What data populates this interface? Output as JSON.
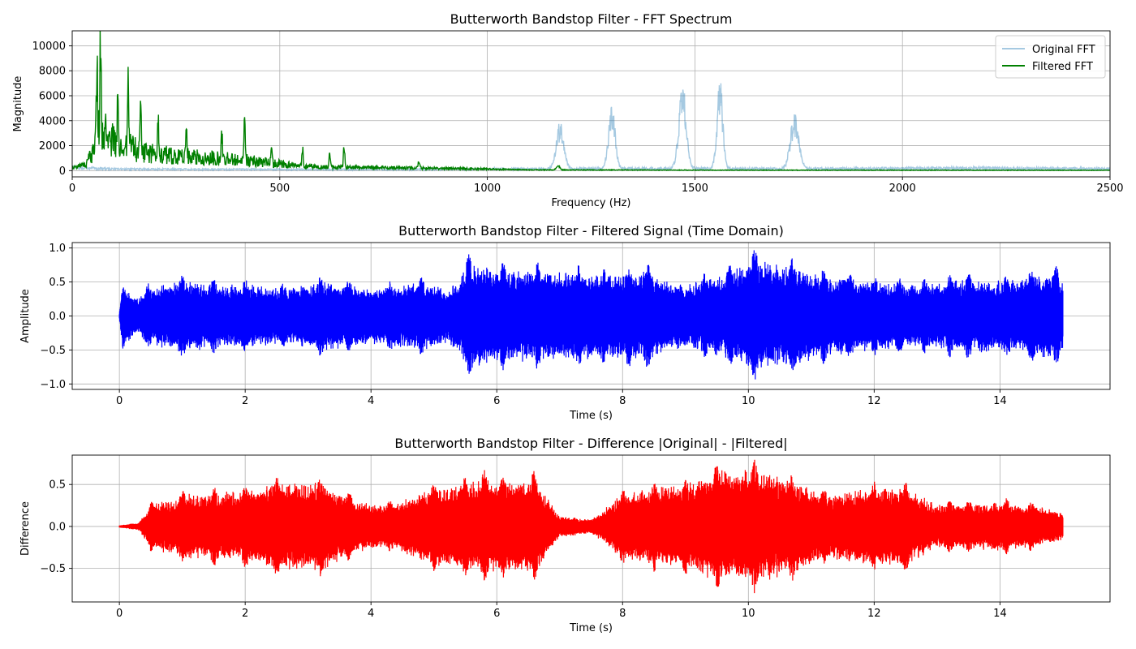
{
  "figure": {
    "background": "#ffffff"
  },
  "chart_data": [
    {
      "id": "fft",
      "type": "line",
      "title": "Butterworth Bandstop Filter - FFT Spectrum",
      "xlabel": "Frequency (Hz)",
      "ylabel": "Magnitude",
      "xlim": [
        0,
        2500
      ],
      "ylim": [
        -500,
        11200
      ],
      "xticks": [
        0,
        500,
        1000,
        1500,
        2000,
        2500
      ],
      "yticks": [
        0,
        2000,
        4000,
        6000,
        8000,
        10000
      ],
      "grid": true,
      "legend": "upper-right",
      "series": [
        {
          "name": "Original FFT",
          "color": "#1f77b4",
          "alpha": 0.4,
          "baseline": [
            [
              0,
              250
            ],
            [
              50,
              180
            ],
            [
              100,
              130
            ],
            [
              300,
              100
            ],
            [
              700,
              90
            ],
            [
              1000,
              120
            ],
            [
              1200,
              150
            ],
            [
              1500,
              170
            ],
            [
              1800,
              150
            ],
            [
              2200,
              200
            ],
            [
              2500,
              150
            ]
          ],
          "peaks": [
            {
              "f": 1175,
              "a": 3900,
              "w": 9
            },
            {
              "f": 1300,
              "a": 5300,
              "w": 8
            },
            {
              "f": 1470,
              "a": 7100,
              "w": 9
            },
            {
              "f": 1560,
              "a": 7500,
              "w": 7
            },
            {
              "f": 1740,
              "a": 4500,
              "w": 10
            }
          ]
        },
        {
          "name": "Filtered FFT",
          "color": "#008000",
          "alpha": 1,
          "baseline": [
            [
              0,
              250
            ],
            [
              30,
              400
            ],
            [
              50,
              1400
            ],
            [
              60,
              3500
            ],
            [
              80,
              2700
            ],
            [
              120,
              2100
            ],
            [
              160,
              1600
            ],
            [
              200,
              1300
            ],
            [
              300,
              1100
            ],
            [
              400,
              900
            ],
            [
              500,
              550
            ],
            [
              600,
              280
            ],
            [
              700,
              250
            ],
            [
              900,
              180
            ],
            [
              1000,
              120
            ],
            [
              1100,
              60
            ],
            [
              1500,
              40
            ],
            [
              2500,
              30
            ]
          ],
          "peaks": [
            {
              "f": 68,
              "a": 10600,
              "w": 1.5
            },
            {
              "f": 60,
              "a": 4900,
              "w": 1.5
            },
            {
              "f": 80,
              "a": 3700,
              "w": 1.5
            },
            {
              "f": 110,
              "a": 5100,
              "w": 1.5
            },
            {
              "f": 135,
              "a": 6300,
              "w": 1.5
            },
            {
              "f": 165,
              "a": 5300,
              "w": 1.5
            },
            {
              "f": 207,
              "a": 4300,
              "w": 1.5
            },
            {
              "f": 275,
              "a": 3500,
              "w": 1.5
            },
            {
              "f": 360,
              "a": 2700,
              "w": 1.5
            },
            {
              "f": 415,
              "a": 3800,
              "w": 1.5
            },
            {
              "f": 480,
              "a": 2200,
              "w": 1.5
            },
            {
              "f": 555,
              "a": 1900,
              "w": 1.5
            },
            {
              "f": 620,
              "a": 1600,
              "w": 1.5
            },
            {
              "f": 655,
              "a": 2300,
              "w": 1.5
            },
            {
              "f": 835,
              "a": 700,
              "w": 2
            },
            {
              "f": 1170,
              "a": 450,
              "w": 4
            }
          ]
        }
      ]
    },
    {
      "id": "filtered",
      "type": "line",
      "title": "Butterworth Bandstop Filter - Filtered Signal (Time Domain)",
      "xlabel": "Time (s)",
      "ylabel": "Amplitude",
      "xlim": [
        -0.75,
        15.75
      ],
      "ylim": [
        -1.08,
        1.08
      ],
      "xticks": [
        0,
        2,
        4,
        6,
        8,
        10,
        12,
        14
      ],
      "yticks": [
        -1.0,
        -0.5,
        0.0,
        0.5,
        1.0
      ],
      "grid": true,
      "duration": [
        0,
        15
      ],
      "series": [
        {
          "name": "",
          "color": "#0000ff",
          "envelope": [
            [
              0,
              0.05
            ],
            [
              0.05,
              0.5
            ],
            [
              0.3,
              0.3
            ],
            [
              0.45,
              0.48
            ],
            [
              1.0,
              0.62
            ],
            [
              1.5,
              0.55
            ],
            [
              2.0,
              0.55
            ],
            [
              2.6,
              0.48
            ],
            [
              3.2,
              0.6
            ],
            [
              4.0,
              0.5
            ],
            [
              4.8,
              0.58
            ],
            [
              5.3,
              0.45
            ],
            [
              5.55,
              0.92
            ],
            [
              6.1,
              0.82
            ],
            [
              6.65,
              0.8
            ],
            [
              7.3,
              0.75
            ],
            [
              7.7,
              0.72
            ],
            [
              8.4,
              0.78
            ],
            [
              8.9,
              0.5
            ],
            [
              9.7,
              0.75
            ],
            [
              10.1,
              1.0
            ],
            [
              10.7,
              0.85
            ],
            [
              11.2,
              0.72
            ],
            [
              12.0,
              0.6
            ],
            [
              12.8,
              0.55
            ],
            [
              13.5,
              0.65
            ],
            [
              14.1,
              0.6
            ],
            [
              14.5,
              0.72
            ],
            [
              14.9,
              0.75
            ],
            [
              15.0,
              0.55
            ]
          ],
          "bursts": [
            0.05,
            0.45,
            1.0,
            1.5,
            2.0,
            2.6,
            3.2,
            3.65,
            4.3,
            4.8,
            5.3,
            5.55,
            6.1,
            6.65,
            7.3,
            7.7,
            8.1,
            8.4,
            8.9,
            9.3,
            9.7,
            10.1,
            10.7,
            11.2,
            11.6,
            12.0,
            12.4,
            12.8,
            13.2,
            13.5,
            14.1,
            14.5,
            14.9
          ]
        }
      ]
    },
    {
      "id": "difference",
      "type": "line",
      "title": "Butterworth Bandstop Filter - Difference |Original| - |Filtered|",
      "xlabel": "Time (s)",
      "ylabel": "Difference",
      "xlim": [
        -0.75,
        15.75
      ],
      "ylim": [
        -0.9,
        0.85
      ],
      "xticks": [
        0,
        2,
        4,
        6,
        8,
        10,
        12,
        14
      ],
      "yticks": [
        -0.5,
        0.0,
        0.5
      ],
      "grid": true,
      "duration": [
        0,
        15
      ],
      "series": [
        {
          "name": "",
          "color": "#ff0000",
          "envelope": [
            [
              0,
              0.02
            ],
            [
              0.3,
              0.05
            ],
            [
              0.5,
              0.3
            ],
            [
              1.0,
              0.45
            ],
            [
              1.5,
              0.48
            ],
            [
              2.0,
              0.5
            ],
            [
              2.5,
              0.6
            ],
            [
              3.2,
              0.62
            ],
            [
              3.8,
              0.35
            ],
            [
              4.3,
              0.3
            ],
            [
              5.0,
              0.55
            ],
            [
              5.5,
              0.6
            ],
            [
              5.8,
              0.68
            ],
            [
              6.1,
              0.62
            ],
            [
              6.6,
              0.7
            ],
            [
              7.0,
              0.15
            ],
            [
              7.5,
              0.1
            ],
            [
              8.0,
              0.45
            ],
            [
              8.5,
              0.55
            ],
            [
              9.0,
              0.6
            ],
            [
              9.5,
              0.78
            ],
            [
              10.1,
              0.8
            ],
            [
              10.7,
              0.65
            ],
            [
              11.2,
              0.45
            ],
            [
              12.0,
              0.55
            ],
            [
              12.5,
              0.55
            ],
            [
              13.0,
              0.3
            ],
            [
              13.5,
              0.32
            ],
            [
              14.0,
              0.35
            ],
            [
              14.5,
              0.3
            ],
            [
              15.0,
              0.2
            ]
          ],
          "bursts": [
            0.5,
            1.0,
            1.5,
            2.0,
            2.5,
            3.2,
            3.65,
            4.3,
            5.0,
            5.5,
            5.8,
            6.1,
            6.6,
            8.0,
            8.5,
            9.0,
            9.5,
            10.1,
            10.7,
            11.2,
            12.0,
            12.5,
            13.2,
            13.5,
            14.1,
            14.5
          ]
        }
      ]
    }
  ]
}
